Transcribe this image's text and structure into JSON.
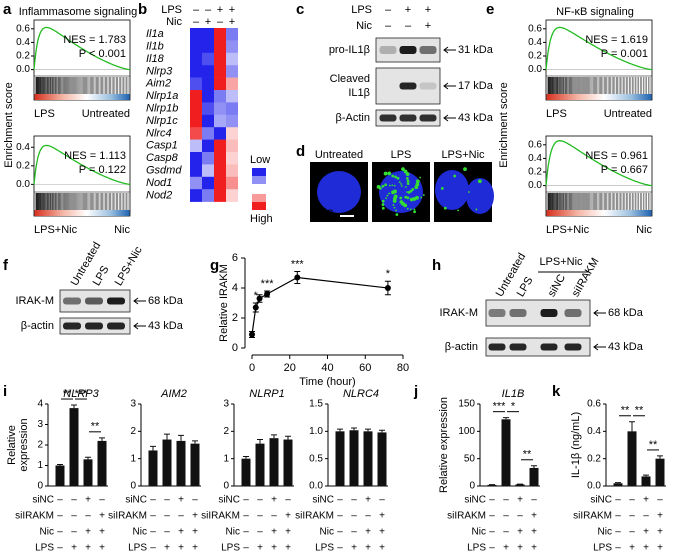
{
  "panels": {
    "a": {
      "letter": "a",
      "title": "Inflammasome signaling",
      "ylabel": "Enrichment score",
      "plots": [
        {
          "ylim": [
            -0.05,
            0.7
          ],
          "yticks": [
            0.6,
            0.4,
            0.2,
            {
              "value": 0,
              "label": "0.0"
            }
          ],
          "nes": "NES = 1.783",
          "p": "P < 0.001",
          "p_color": "#e8191c",
          "left": "LPS",
          "right": "Untreated"
        },
        {
          "ylim": [
            -0.05,
            0.5
          ],
          "yticks": [
            0.4,
            0.2,
            {
              "value": 0,
              "label": "0.0"
            }
          ],
          "nes": "NES = 1.113",
          "p": "P = 0.122",
          "p_color": "#000000",
          "left": "LPS+Nic",
          "right": "Nic"
        }
      ]
    },
    "b": {
      "letter": "b",
      "header": [
        {
          "label": "LPS",
          "signs": [
            "–",
            "–",
            "+",
            "+"
          ]
        },
        {
          "label": "Nic",
          "signs": [
            "–",
            "+",
            "–",
            "+"
          ]
        }
      ],
      "genes": [
        {
          "name": "Il1a",
          "color": "#000000",
          "values": [
            -1,
            -1,
            1,
            -0.6
          ]
        },
        {
          "name": "Il1b",
          "color": "#000000",
          "values": [
            -1,
            -1,
            1,
            -0.5
          ]
        },
        {
          "name": "Il18",
          "color": "#000000",
          "values": [
            -1,
            -0.8,
            1,
            -0.3
          ]
        },
        {
          "name": "Nlrp3",
          "color": "#d6001c",
          "values": [
            -1,
            -1,
            1,
            -0.5
          ]
        },
        {
          "name": "Aim2",
          "color": "#d6001c",
          "values": [
            -0.8,
            -1,
            1,
            0.4
          ]
        },
        {
          "name": "Nlrp1a",
          "color": "#d6001c",
          "values": [
            1,
            -1,
            -0.6,
            -0.3
          ]
        },
        {
          "name": "Nlrp1b",
          "color": "#d6001c",
          "values": [
            1,
            -0.8,
            -0.5,
            -0.6
          ]
        },
        {
          "name": "Nlrp1c",
          "color": "#d6001c",
          "values": [
            1,
            -1,
            -0.4,
            -0.5
          ]
        },
        {
          "name": "Nlrc4",
          "color": "#d6001c",
          "values": [
            0.8,
            -0.6,
            -1,
            0.2
          ]
        },
        {
          "name": "Casp1",
          "color": "#000000",
          "values": [
            -0.3,
            -1,
            1,
            0.3
          ]
        },
        {
          "name": "Casp8",
          "color": "#000000",
          "values": [
            -1,
            -0.6,
            1,
            0.2
          ]
        },
        {
          "name": "Gsdmd",
          "color": "#000000",
          "values": [
            -1,
            -0.3,
            1,
            0.3
          ]
        },
        {
          "name": "Nod1",
          "color": "#000000",
          "values": [
            -0.5,
            -1,
            1,
            0.5
          ]
        },
        {
          "name": "Nod2",
          "color": "#000000",
          "values": [
            -1,
            -0.6,
            1,
            0.2
          ]
        }
      ],
      "legend": {
        "low": "Low",
        "high": "High"
      }
    },
    "c": {
      "letter": "c",
      "header": [
        {
          "label": "LPS",
          "signs": [
            "–",
            "+",
            "+"
          ]
        },
        {
          "label": "Nic",
          "signs": [
            "–",
            "–",
            "+"
          ]
        }
      ],
      "blots": [
        {
          "label": "pro-IL1β",
          "size": "31 kDa"
        },
        {
          "label": [
            "Cleaved",
            "IL1β"
          ],
          "size": "17 kDa"
        },
        {
          "label": "β-Actin",
          "size": "43 kDa"
        }
      ]
    },
    "d": {
      "letter": "d",
      "images": [
        "Untreated",
        "LPS",
        "LPS+Nic"
      ],
      "stain": "ASC"
    },
    "e": {
      "letter": "e",
      "title": "NF-κB signaling",
      "ylabel": "Enrichment score",
      "plots": [
        {
          "ylim": [
            -0.05,
            0.7
          ],
          "yticks": [
            0.6,
            0.4,
            0.2,
            {
              "value": 0,
              "label": "0.0"
            }
          ],
          "nes": "NES = 1.619",
          "p": "P = 0.001",
          "p_color": "#e8191c",
          "left": "LPS",
          "right": "Untreated"
        },
        {
          "ylim": [
            -0.05,
            0.7
          ],
          "yticks": [
            0.6,
            0.4,
            0.2,
            {
              "value": 0,
              "label": "0.0"
            }
          ],
          "nes": "NES = 0.961",
          "p": "P = 0.667",
          "p_color": "#000000",
          "left": "LPS+Nic",
          "right": "Nic"
        }
      ]
    },
    "f": {
      "letter": "f",
      "lanes": [
        "Untreated",
        "LPS",
        "LPS+Nic"
      ],
      "blots": [
        {
          "label": "IRAK-M",
          "size": "68 kDa"
        },
        {
          "label": "β-actin",
          "size": "43 kDa"
        }
      ]
    },
    "g": {
      "letter": "g",
      "type": "line",
      "ylabel": "Relative IRAKM",
      "xlabel": "Time (hour)",
      "x": [
        0,
        2,
        4,
        8,
        24,
        72
      ],
      "values": [
        0.9,
        2.7,
        3.3,
        3.6,
        4.7,
        4.0
      ],
      "errors": [
        0.2,
        0.3,
        0.25,
        0.2,
        0.4,
        0.45
      ],
      "stars": [
        null,
        "*",
        null,
        "***",
        "***",
        "*"
      ],
      "xlim": [
        0,
        80
      ],
      "ylim": [
        0,
        6
      ],
      "xticks": [
        0,
        20,
        40,
        60,
        80
      ],
      "yticks": [
        0,
        2,
        4,
        6
      ]
    },
    "h": {
      "letter": "h",
      "group": "LPS+Nic",
      "lanes": [
        "Untreated",
        "LPS",
        "siNC",
        "siIRAKM"
      ],
      "blots": [
        {
          "label": "IRAK-M",
          "size": "68 kDa"
        },
        {
          "label": "β-actin",
          "size": "43 kDa"
        }
      ]
    },
    "i": {
      "letter": "i",
      "ylabel": [
        "Relative",
        "expression"
      ],
      "charts": [
        {
          "title": "NLRP3",
          "ylim": [
            0,
            4
          ],
          "yticks": [
            0,
            1,
            2,
            3,
            4
          ],
          "values": [
            1,
            3.8,
            1.3,
            2.2
          ],
          "errors": [
            0.05,
            0.15,
            0.1,
            0.15
          ],
          "stars": [
            "**",
            "***",
            "**"
          ],
          "conditions": [
            {
              "label": "siNC",
              "signs": [
                "–",
                "–",
                "+",
                "–"
              ]
            },
            {
              "label": "siIRAKM",
              "signs": [
                "–",
                "–",
                "–",
                "+"
              ]
            },
            {
              "label": "Nic",
              "signs": [
                "–",
                "–",
                "+",
                "+"
              ]
            },
            {
              "label": "LPS",
              "signs": [
                "–",
                "+",
                "+",
                "+"
              ]
            }
          ]
        },
        {
          "title": "AIM2",
          "ylim": [
            0,
            3
          ],
          "yticks": [
            0,
            1,
            2,
            3
          ],
          "values": [
            1.3,
            1.7,
            1.65,
            1.55
          ],
          "errors": [
            0.15,
            0.2,
            0.2,
            0.1
          ],
          "stars": [],
          "conditions": [
            {
              "label": "siNC",
              "signs": [
                "–",
                "–",
                "+",
                "–"
              ]
            },
            {
              "label": "siIRAKM",
              "signs": [
                "–",
                "–",
                "–",
                "+"
              ]
            },
            {
              "label": "Nic",
              "signs": [
                "–",
                "–",
                "+",
                "+"
              ]
            },
            {
              "label": "LPS",
              "signs": [
                "–",
                "+",
                "+",
                "+"
              ]
            }
          ]
        },
        {
          "title": "NLRP1",
          "ylim": [
            0,
            3
          ],
          "yticks": [
            0,
            1,
            2,
            3
          ],
          "values": [
            1.0,
            1.55,
            1.75,
            1.7
          ],
          "errors": [
            0.08,
            0.15,
            0.12,
            0.12
          ],
          "stars": [],
          "conditions": [
            {
              "label": "siNC",
              "signs": [
                "–",
                "–",
                "+",
                "–"
              ]
            },
            {
              "label": "siIRAKM",
              "signs": [
                "–",
                "–",
                "–",
                "+"
              ]
            },
            {
              "label": "Nic",
              "signs": [
                "–",
                "–",
                "+",
                "+"
              ]
            },
            {
              "label": "LPS",
              "signs": [
                "–",
                "+",
                "+",
                "+"
              ]
            }
          ]
        },
        {
          "title": "NLRC4",
          "ylim": [
            0,
            1.5
          ],
          "yticks": [
            {
              "value": 0,
              "label": "0.0"
            },
            0.5,
            {
              "value": 1,
              "label": "1.0"
            },
            1.5
          ],
          "values": [
            1.0,
            1.02,
            1.0,
            0.98
          ],
          "errors": [
            0.04,
            0.04,
            0.04,
            0.04
          ],
          "stars": [],
          "conditions": [
            {
              "label": "siNC",
              "signs": [
                "–",
                "–",
                "+",
                "–"
              ]
            },
            {
              "label": "siIRAKM",
              "signs": [
                "–",
                "–",
                "–",
                "+"
              ]
            },
            {
              "label": "Nic",
              "signs": [
                "–",
                "–",
                "+",
                "+"
              ]
            },
            {
              "label": "LPS",
              "signs": [
                "–",
                "+",
                "+",
                "+"
              ]
            }
          ]
        }
      ]
    },
    "j": {
      "letter": "j",
      "ylabel": "Relative expression",
      "charts": [
        {
          "title": "IL1B",
          "ylim": [
            0,
            150
          ],
          "yticks": [
            0,
            50,
            100,
            150
          ],
          "values": [
            2,
            122,
            3,
            33
          ],
          "errors": [
            0.5,
            3,
            0.5,
            4
          ],
          "stars": [
            "***",
            "*",
            "**"
          ],
          "conditions": [
            {
              "label": "siNC",
              "signs": [
                "–",
                "–",
                "+",
                "–"
              ]
            },
            {
              "label": "siIRAKM",
              "signs": [
                "–",
                "–",
                "–",
                "+"
              ]
            },
            {
              "label": "Nic",
              "signs": [
                "–",
                "–",
                "+",
                "+"
              ]
            },
            {
              "label": "LPS",
              "signs": [
                "–",
                "+",
                "+",
                "+"
              ]
            }
          ]
        }
      ]
    },
    "k": {
      "letter": "k",
      "ylabel": "IL-1β (ng/mL)",
      "charts": [
        {
          "title": "",
          "ylim": [
            0,
            0.6
          ],
          "yticks": [
            {
              "value": 0,
              "label": "0.0"
            },
            0.2,
            0.4,
            0.6
          ],
          "values": [
            0.02,
            0.4,
            0.07,
            0.2
          ],
          "errors": [
            0.005,
            0.07,
            0.01,
            0.02
          ],
          "stars": [
            "**",
            "**",
            "**"
          ],
          "conditions": [
            {
              "label": "siNC",
              "signs": [
                "–",
                "–",
                "+",
                "–"
              ]
            },
            {
              "label": "siIRAKM",
              "signs": [
                "–",
                "–",
                "–",
                "+"
              ]
            },
            {
              "label": "Nic",
              "signs": [
                "–",
                "–",
                "+",
                "+"
              ]
            },
            {
              "label": "LPS",
              "signs": [
                "–",
                "+",
                "+",
                "+"
              ]
            }
          ]
        }
      ]
    }
  }
}
